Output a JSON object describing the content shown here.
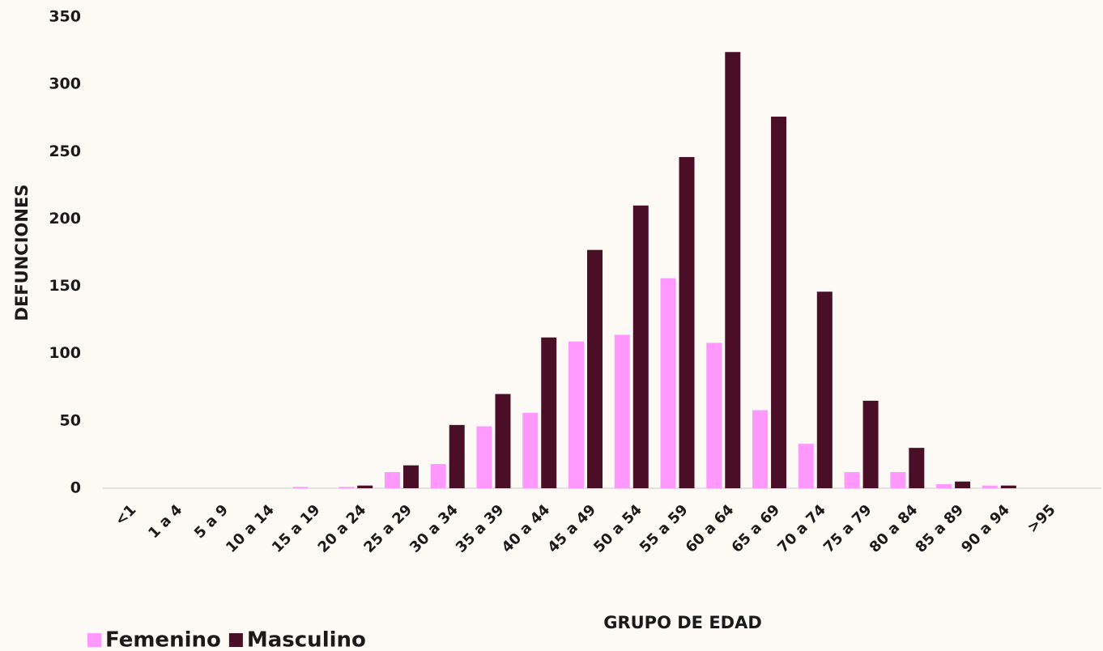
{
  "chart_data": {
    "type": "bar",
    "x_label": "GRUPO DE EDAD",
    "y_label": "DEFUNCIONES",
    "categories": [
      "<1",
      "1 a 4",
      "5 a 9",
      "10 a 14",
      "15 a 19",
      "20 a 24",
      "25 a 29",
      "30 a 34",
      "35 a 39",
      "40 a 44",
      "45 a 49",
      "50 a 54",
      "55 a 59",
      "60 a 64",
      "65 a 69",
      "70 a 74",
      "75 a 79",
      "80 a 84",
      "85 a 89",
      "90 a 94",
      ">95"
    ],
    "series": [
      {
        "name": "Femenino",
        "color": "#ff99ff",
        "values": [
          0,
          0,
          0,
          0,
          1,
          1,
          12,
          18,
          46,
          56,
          109,
          114,
          156,
          108,
          58,
          33,
          12,
          12,
          3,
          2,
          0
        ]
      },
      {
        "name": "Masculino",
        "color": "#4a0f26",
        "values": [
          0,
          0,
          0,
          0,
          0,
          2,
          17,
          47,
          70,
          112,
          177,
          210,
          246,
          324,
          276,
          146,
          65,
          30,
          5,
          2,
          0
        ]
      }
    ],
    "ylim": [
      0,
      350
    ],
    "yticks": [
      0,
      50,
      100,
      150,
      200,
      250,
      300,
      350
    ],
    "grid": false
  }
}
